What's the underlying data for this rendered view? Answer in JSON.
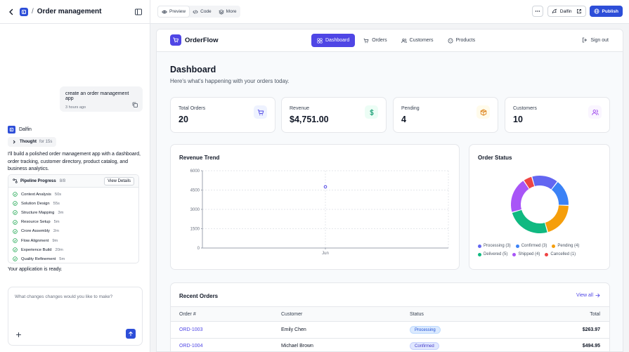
{
  "project": {
    "title": "Order management"
  },
  "chat": {
    "user_message": "create an order management app",
    "user_time": "3 hours ago",
    "bot_name": "Dalfin",
    "thought_label": "Thought",
    "thought_duration": "for 15s",
    "bot_text": "I'll build a polished order management app with a dashboard, order tracking, customer directory, product catalog, and business analytics.",
    "pipeline": {
      "title": "Pipeline Progress",
      "count": "8/8",
      "view_details": "View Details",
      "steps": [
        {
          "name": "Context Analysis",
          "duration": "50s"
        },
        {
          "name": "Solution Design",
          "duration": "55s"
        },
        {
          "name": "Structure Mapping",
          "duration": "3m"
        },
        {
          "name": "Resource Setup",
          "duration": "5m"
        },
        {
          "name": "Crore Assembly",
          "duration": "2m"
        },
        {
          "name": "Flow Alignment",
          "duration": "9m"
        },
        {
          "name": "Experience Build",
          "duration": "20m"
        },
        {
          "name": "Quality Refinement",
          "duration": "5m"
        }
      ]
    },
    "ready_text": "Your application is ready.",
    "composer_placeholder": "What changes changes would you like to make?"
  },
  "toolbar": {
    "modes": [
      "Preview",
      "Code",
      "More"
    ],
    "active_mode": "Preview",
    "user_label": "Dalfin",
    "publish_label": "Publish"
  },
  "app": {
    "brand": "OrderFlow",
    "nav": [
      "Dashboard",
      "Orders",
      "Customers",
      "Products"
    ],
    "active_nav": "Dashboard",
    "signout": "Sign out",
    "title": "Dashboard",
    "subtitle": "Here's what's happening with your orders today.",
    "stats": [
      {
        "label": "Total Orders",
        "value": "20",
        "icon": "cart-icon",
        "color": "#4f46e5",
        "bg": "#eef2ff"
      },
      {
        "label": "Revenue",
        "value": "$4,751.00",
        "icon": "dollar-icon",
        "color": "#059669",
        "bg": "#ecfdf5"
      },
      {
        "label": "Pending",
        "value": "4",
        "icon": "box-icon",
        "color": "#d97706",
        "bg": "#fffbeb"
      },
      {
        "label": "Customers",
        "value": "10",
        "icon": "users-icon",
        "color": "#9333ea",
        "bg": "#faf5ff"
      }
    ],
    "revenue_title": "Revenue Trend",
    "status_title": "Order Status",
    "orders_title": "Recent Orders",
    "view_all": "View all",
    "table": {
      "headers": [
        "Order #",
        "Customer",
        "Status",
        "Total"
      ],
      "rows": [
        {
          "order": "ORD-1003",
          "customer": "Emily Chen",
          "status": "Processing",
          "total": "$263.97"
        },
        {
          "order": "ORD-1004",
          "customer": "Michael Brown",
          "status": "Confirmed",
          "total": "$494.95"
        }
      ]
    }
  },
  "chart_data": [
    {
      "type": "line",
      "title": "Revenue Trend",
      "categories": [
        "Jun"
      ],
      "series": [
        {
          "values": [
            4751
          ]
        }
      ],
      "ylim": [
        0,
        6000
      ],
      "yticks": [
        0,
        1500,
        3000,
        4500,
        6000
      ],
      "grid": true,
      "point_color": "#4f46e5"
    },
    {
      "type": "pie",
      "title": "Order Status",
      "donut": true,
      "legend": "bottom",
      "labels": [
        "Processing",
        "Confirmed",
        "Pending",
        "Delivered",
        "Shipped",
        "Cancelled"
      ],
      "values": [
        3,
        3,
        4,
        5,
        4,
        1
      ],
      "legend_labels": [
        "Processing (3)",
        "Confirmed (3)",
        "Pending (4)",
        "Delivered (5)",
        "Shipped (4)",
        "Cancelled (1)"
      ],
      "colors": [
        "#6366f1",
        "#3b82f6",
        "#f59e0b",
        "#10b981",
        "#a855f7",
        "#ef4444"
      ]
    }
  ]
}
